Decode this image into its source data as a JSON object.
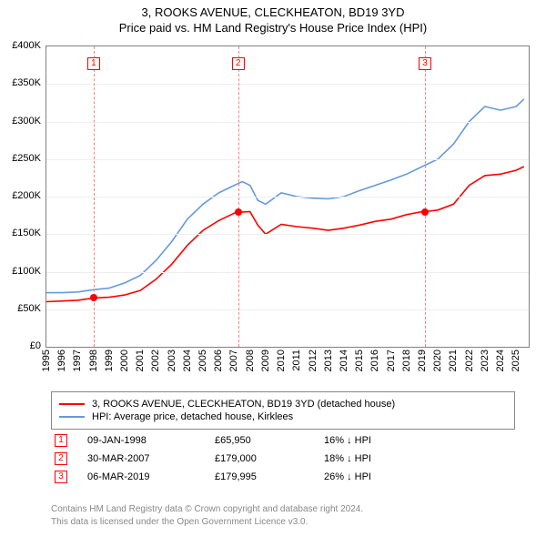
{
  "title": "3, ROOKS AVENUE, CLECKHEATON, BD19 3YD",
  "subtitle": "Price paid vs. HM Land Registry's House Price Index (HPI)",
  "chart": {
    "type": "line",
    "background_color": "#ffffff",
    "grid_color": "#eeeeee",
    "border_color": "#808080",
    "xlim": [
      1995,
      2025.8
    ],
    "ylim": [
      0,
      400
    ],
    "yticks": [
      0,
      50,
      100,
      150,
      200,
      250,
      300,
      350,
      400
    ],
    "ytick_labels": [
      "£0",
      "£50K",
      "£100K",
      "£150K",
      "£200K",
      "£250K",
      "£300K",
      "£350K",
      "£400K"
    ],
    "xticks": [
      1995,
      1996,
      1997,
      1998,
      1999,
      2000,
      2001,
      2002,
      2003,
      2004,
      2005,
      2006,
      2007,
      2008,
      2009,
      2010,
      2011,
      2012,
      2013,
      2014,
      2015,
      2016,
      2017,
      2018,
      2019,
      2020,
      2021,
      2022,
      2023,
      2024,
      2025
    ],
    "xtick_labels": [
      "1995",
      "1996",
      "1997",
      "1998",
      "1999",
      "2000",
      "2001",
      "2002",
      "2003",
      "2004",
      "2005",
      "2006",
      "2007",
      "2008",
      "2009",
      "2010",
      "2011",
      "2012",
      "2013",
      "2014",
      "2015",
      "2016",
      "2017",
      "2018",
      "2019",
      "2020",
      "2021",
      "2022",
      "2023",
      "2024",
      "2025"
    ],
    "title_fontsize": 13,
    "label_fontsize": 11,
    "series": [
      {
        "name": "price_paid",
        "color": "#ff0000",
        "line_width": 1.6,
        "x": [
          1995,
          1996,
          1997,
          1998,
          1999,
          2000,
          2001,
          2002,
          2003,
          2004,
          2005,
          2006,
          2007,
          2007.25,
          2008,
          2008.5,
          2009,
          2010,
          2011,
          2012,
          2013,
          2014,
          2015,
          2016,
          2017,
          2018,
          2019,
          2019.2,
          2020,
          2021,
          2022,
          2023,
          2024,
          2025,
          2025.5
        ],
        "y": [
          60,
          61,
          62,
          65,
          66,
          69,
          75,
          90,
          110,
          135,
          155,
          168,
          178,
          179,
          180,
          162,
          150,
          163,
          160,
          158,
          155,
          158,
          162,
          167,
          170,
          176,
          180,
          180,
          182,
          190,
          215,
          228,
          230,
          235,
          240
        ]
      },
      {
        "name": "hpi",
        "color": "#6699dd",
        "line_width": 1.6,
        "x": [
          1995,
          1996,
          1997,
          1998,
          1999,
          2000,
          2001,
          2002,
          2003,
          2004,
          2005,
          2006,
          2007,
          2007.5,
          2008,
          2008.5,
          2009,
          2010,
          2011,
          2012,
          2013,
          2014,
          2015,
          2016,
          2017,
          2018,
          2019,
          2020,
          2021,
          2022,
          2023,
          2024,
          2025,
          2025.5
        ],
        "y": [
          72,
          72,
          73,
          76,
          78,
          85,
          95,
          115,
          140,
          170,
          190,
          205,
          215,
          220,
          215,
          195,
          190,
          205,
          200,
          198,
          197,
          200,
          208,
          215,
          222,
          230,
          240,
          250,
          270,
          300,
          320,
          315,
          320,
          330
        ]
      }
    ],
    "points": [
      {
        "x": 1998.02,
        "y": 65.95,
        "color": "#ff0000"
      },
      {
        "x": 2007.25,
        "y": 179,
        "color": "#ff0000"
      },
      {
        "x": 2019.18,
        "y": 179.995,
        "color": "#ff0000"
      }
    ],
    "markers": [
      {
        "label": "1",
        "x": 1998.02
      },
      {
        "label": "2",
        "x": 2007.25
      },
      {
        "label": "3",
        "x": 2019.18
      }
    ],
    "marker_color": "#ff0000",
    "marker_line_color": "#ff8080"
  },
  "legend": {
    "items": [
      {
        "color": "#ff0000",
        "label": "3, ROOKS AVENUE, CLECKHEATON, BD19 3YD (detached house)"
      },
      {
        "color": "#6699dd",
        "label": "HPI: Average price, detached house, Kirklees"
      }
    ]
  },
  "transactions": [
    {
      "num": "1",
      "date": "09-JAN-1998",
      "price": "£65,950",
      "diff": "16% ↓ HPI"
    },
    {
      "num": "2",
      "date": "30-MAR-2007",
      "price": "£179,000",
      "diff": "18% ↓ HPI"
    },
    {
      "num": "3",
      "date": "06-MAR-2019",
      "price": "£179,995",
      "diff": "26% ↓ HPI"
    }
  ],
  "footnote_line1": "Contains HM Land Registry data © Crown copyright and database right 2024.",
  "footnote_line2": "This data is licensed under the Open Government Licence v3.0.",
  "footnote_color": "#888888"
}
